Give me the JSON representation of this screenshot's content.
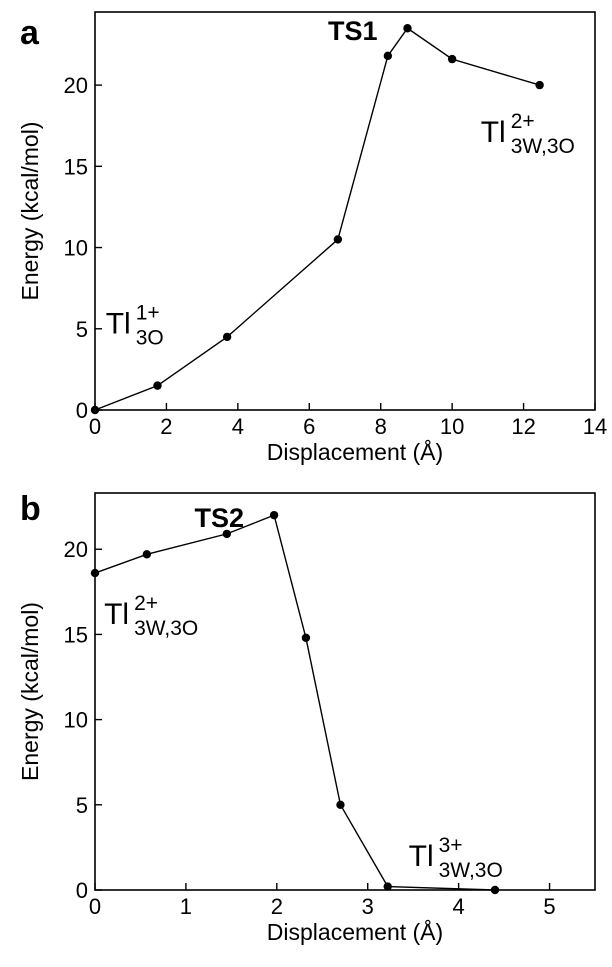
{
  "chart_data": [
    {
      "type": "line",
      "panel": "a",
      "xlabel": "Displacement (Å)",
      "ylabel": "Energy (kcal/mol)",
      "xlim": [
        0,
        14
      ],
      "ylim": [
        0,
        24.5
      ],
      "xticks": [
        0,
        2,
        4,
        6,
        8,
        10,
        12,
        14
      ],
      "yticks": [
        0,
        5,
        10,
        15,
        20
      ],
      "x": [
        0,
        1.75,
        3.7,
        6.8,
        8.2,
        8.75,
        10.0,
        12.45
      ],
      "y": [
        0,
        1.5,
        4.5,
        10.5,
        21.8,
        23.5,
        21.6,
        20.0
      ],
      "annotations": [
        {
          "text": "TS1",
          "x": 8.75,
          "y": 23.5,
          "style": "ts"
        },
        {
          "base": "Tl",
          "sup": "1+",
          "sub": "3O",
          "x": 0.3,
          "y": 4.7,
          "style": "species"
        },
        {
          "base": "Tl",
          "sup": "2+",
          "sub": "3W,3O",
          "x": 10.8,
          "y": 16.5,
          "style": "species"
        }
      ]
    },
    {
      "type": "line",
      "panel": "b",
      "xlabel": "Displacement (Å)",
      "ylabel": "Energy (kcal/mol)",
      "xlim": [
        0,
        5.5
      ],
      "ylim": [
        0,
        23.3
      ],
      "xticks": [
        0,
        1,
        2,
        3,
        4,
        5
      ],
      "yticks": [
        0,
        5,
        10,
        15,
        20
      ],
      "x": [
        0,
        0.57,
        1.45,
        1.97,
        2.32,
        2.7,
        3.22,
        4.4
      ],
      "y": [
        18.6,
        19.7,
        20.9,
        22.0,
        14.8,
        5.0,
        0.2,
        0.0
      ],
      "annotations": [
        {
          "text": "TS2",
          "x": 1.97,
          "y": 22.0,
          "style": "ts"
        },
        {
          "base": "Tl",
          "sup": "2+",
          "sub": "3W,3O",
          "x": 0.1,
          "y": 15.6,
          "style": "species"
        },
        {
          "base": "Tl",
          "sup": "3+",
          "sub": "3W,3O",
          "x": 3.45,
          "y": 1.4,
          "style": "species"
        }
      ]
    }
  ]
}
